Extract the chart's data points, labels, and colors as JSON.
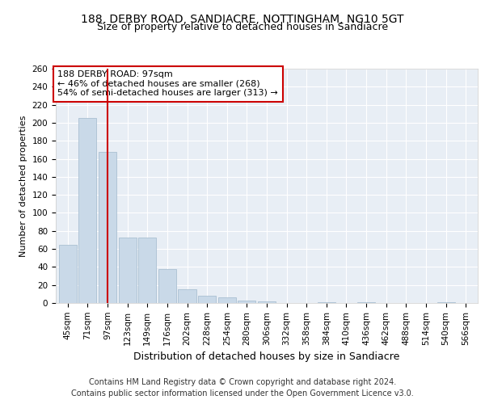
{
  "title": "188, DERBY ROAD, SANDIACRE, NOTTINGHAM, NG10 5GT",
  "subtitle": "Size of property relative to detached houses in Sandiacre",
  "xlabel": "Distribution of detached houses by size in Sandiacre",
  "ylabel": "Number of detached properties",
  "categories": [
    "45sqm",
    "71sqm",
    "97sqm",
    "123sqm",
    "149sqm",
    "176sqm",
    "202sqm",
    "228sqm",
    "254sqm",
    "280sqm",
    "306sqm",
    "332sqm",
    "358sqm",
    "384sqm",
    "410sqm",
    "436sqm",
    "462sqm",
    "488sqm",
    "514sqm",
    "540sqm",
    "566sqm"
  ],
  "values": [
    65,
    205,
    168,
    73,
    73,
    38,
    15,
    8,
    6,
    3,
    2,
    0,
    0,
    1,
    0,
    1,
    0,
    0,
    0,
    1,
    0
  ],
  "bar_color": "#c9d9e8",
  "bar_edge_color": "#a0b8cc",
  "marker_index": 2,
  "marker_color": "#cc0000",
  "annotation_line1": "188 DERBY ROAD: 97sqm",
  "annotation_line2": "← 46% of detached houses are smaller (268)",
  "annotation_line3": "54% of semi-detached houses are larger (313) →",
  "annotation_box_color": "#cc0000",
  "ylim": [
    0,
    260
  ],
  "yticks": [
    0,
    20,
    40,
    60,
    80,
    100,
    120,
    140,
    160,
    180,
    200,
    220,
    240,
    260
  ],
  "background_color": "#e8eef5",
  "footer_line1": "Contains HM Land Registry data © Crown copyright and database right 2024.",
  "footer_line2": "Contains public sector information licensed under the Open Government Licence v3.0.",
  "title_fontsize": 10,
  "subtitle_fontsize": 9,
  "xlabel_fontsize": 9,
  "ylabel_fontsize": 8,
  "tick_fontsize": 7.5,
  "annotation_fontsize": 8,
  "footer_fontsize": 7
}
